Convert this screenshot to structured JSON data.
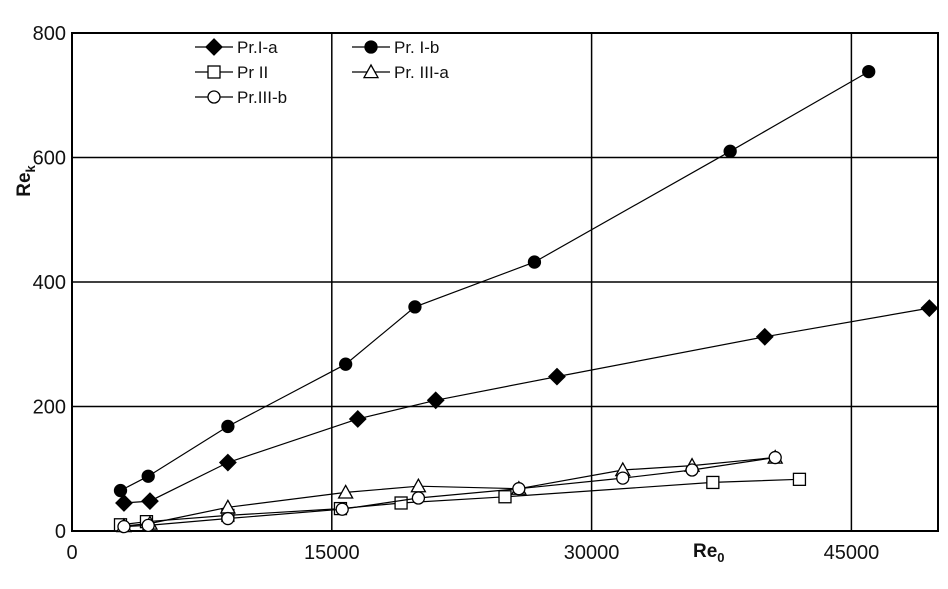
{
  "chart_data": {
    "type": "line",
    "title": "",
    "xlabel": "Re",
    "xlabel_sub": "0",
    "ylabel": "Re",
    "ylabel_sub": "k",
    "xlim": [
      0,
      50000
    ],
    "ylim": [
      0,
      800
    ],
    "xticks": [
      "0",
      "15000",
      "30000",
      "45000"
    ],
    "xtick_values": [
      0,
      15000,
      30000,
      45000
    ],
    "yticks": [
      "0",
      "200",
      "400",
      "600",
      "800"
    ],
    "ytick_values": [
      0,
      200,
      400,
      600,
      800
    ],
    "grid": true,
    "legend_position": "top-left",
    "series": [
      {
        "name": "Pr.I-a",
        "marker": "diamond",
        "filled": true,
        "x": [
          3000,
          4500,
          9000,
          16500,
          21000,
          28000,
          40000,
          49500
        ],
        "y": [
          45,
          48,
          110,
          180,
          210,
          248,
          312,
          358
        ]
      },
      {
        "name": "Pr. I-b",
        "marker": "circle",
        "filled": true,
        "x": [
          2800,
          4400,
          9000,
          15800,
          19800,
          26700,
          38000,
          46000
        ],
        "y": [
          65,
          88,
          168,
          268,
          360,
          432,
          610,
          738
        ]
      },
      {
        "name": "Pr  II",
        "marker": "square",
        "filled": false,
        "x": [
          2800,
          4300,
          9000,
          15500,
          19000,
          25000,
          37000,
          42000
        ],
        "y": [
          10,
          15,
          25,
          36,
          45,
          55,
          78,
          83
        ]
      },
      {
        "name": "Pr. III-a",
        "marker": "triangle",
        "filled": false,
        "x": [
          3000,
          4500,
          9000,
          15800,
          20000,
          25800,
          31800,
          35800,
          40600
        ],
        "y": [
          8,
          12,
          38,
          62,
          72,
          68,
          98,
          105,
          118
        ]
      },
      {
        "name": "Pr.III-b",
        "marker": "circle",
        "filled": false,
        "x": [
          3000,
          4400,
          9000,
          15600,
          20000,
          25800,
          31800,
          35800,
          40600
        ],
        "y": [
          7,
          9,
          20,
          35,
          53,
          68,
          85,
          98,
          118
        ]
      }
    ]
  },
  "colors": {
    "line": "#000000",
    "grid": "#000000",
    "background": "#ffffff"
  }
}
